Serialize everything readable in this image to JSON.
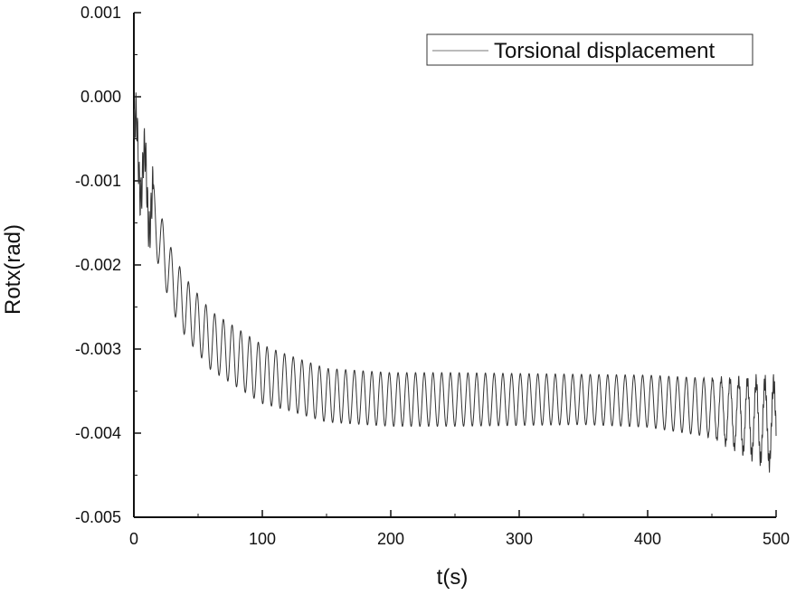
{
  "chart_data": {
    "type": "line",
    "title": "",
    "xlabel": "t(s)",
    "ylabel": "Rotx(rad)",
    "xlim": [
      0,
      500
    ],
    "ylim": [
      -0.005,
      0.001
    ],
    "x_ticks": [
      "0",
      "100",
      "200",
      "300",
      "400",
      "500"
    ],
    "y_ticks": [
      "0.001",
      "0.000",
      "-0.001",
      "-0.002",
      "-0.003",
      "-0.004",
      "-0.005"
    ],
    "grid": false,
    "legend": {
      "position": "top-right",
      "entries": [
        "Torsional displacement"
      ]
    },
    "series": [
      {
        "name": "Torsional displacement",
        "color": "#333333",
        "description_mean": "oscillation around a decaying mean",
        "x": [
          0,
          10,
          20,
          30,
          40,
          50,
          60,
          80,
          100,
          120,
          150,
          200,
          250,
          300,
          350,
          400,
          450,
          500
        ],
        "y_center": [
          -0.0005,
          -0.0011,
          -0.0017,
          -0.0022,
          -0.0025,
          -0.0027,
          -0.0029,
          -0.0031,
          -0.0033,
          -0.0034,
          -0.00355,
          -0.0036,
          -0.0036,
          -0.0036,
          -0.0036,
          -0.00362,
          -0.0037,
          -0.0039
        ],
        "y_amplitude": [
          0.0004,
          0.0004,
          0.00035,
          0.00035,
          0.00035,
          0.00035,
          0.00035,
          0.00035,
          0.00035,
          0.00033,
          0.00032,
          0.00032,
          0.00032,
          0.00031,
          0.0003,
          0.00031,
          0.00035,
          0.0005
        ],
        "period": 6.8
      }
    ]
  }
}
